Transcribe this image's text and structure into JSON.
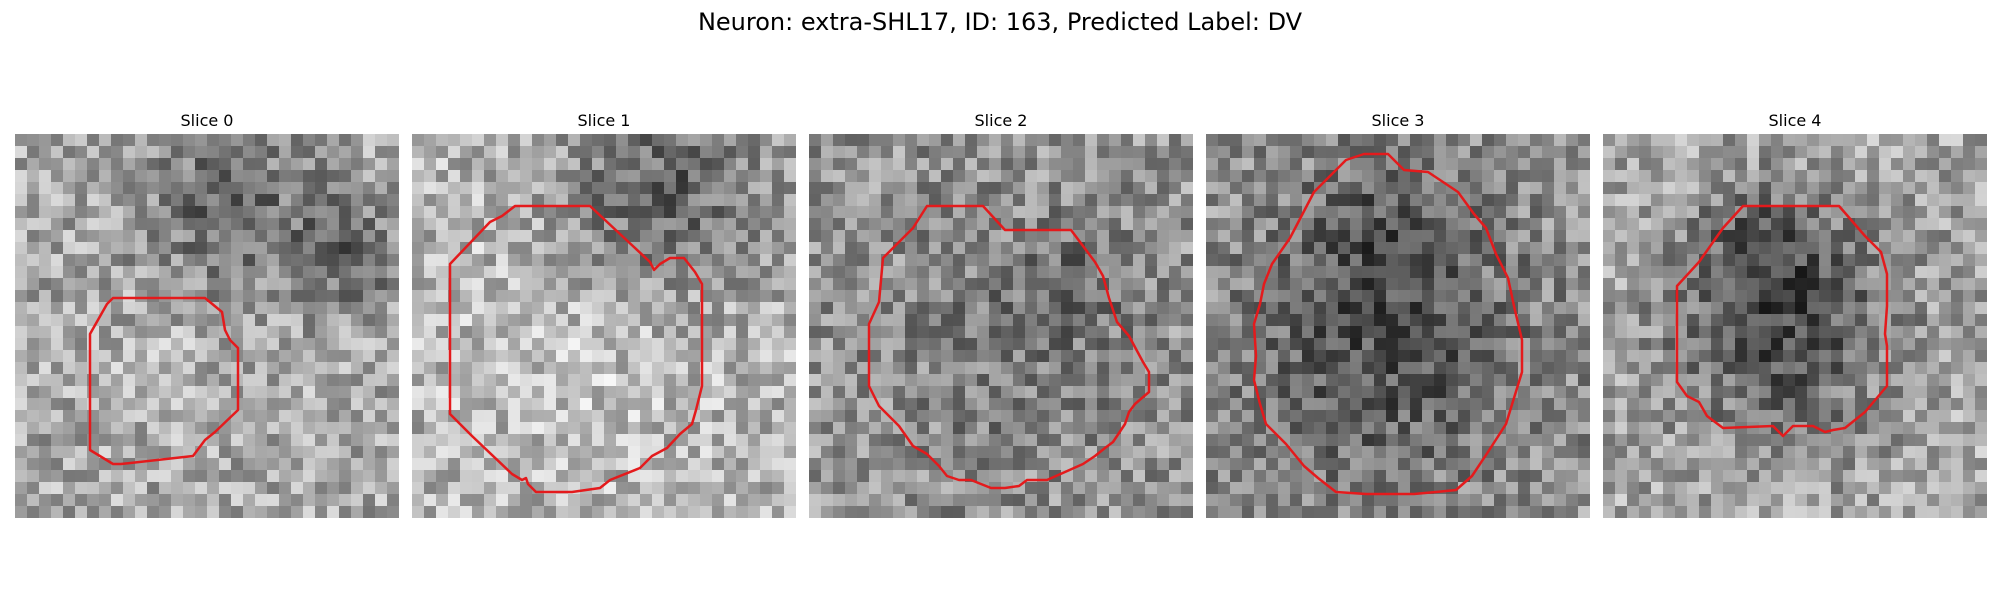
{
  "figure": {
    "title": "Neuron: extra-SHL17, ID: 163, Predicted Label: DV"
  },
  "colors": {
    "contour": "#e41a1c",
    "background": "#ffffff"
  },
  "panels": [
    {
      "label": "Slice 0"
    },
    {
      "label": "Slice 1"
    },
    {
      "label": "Slice 2"
    },
    {
      "label": "Slice 3"
    },
    {
      "label": "Slice 4"
    }
  ]
}
